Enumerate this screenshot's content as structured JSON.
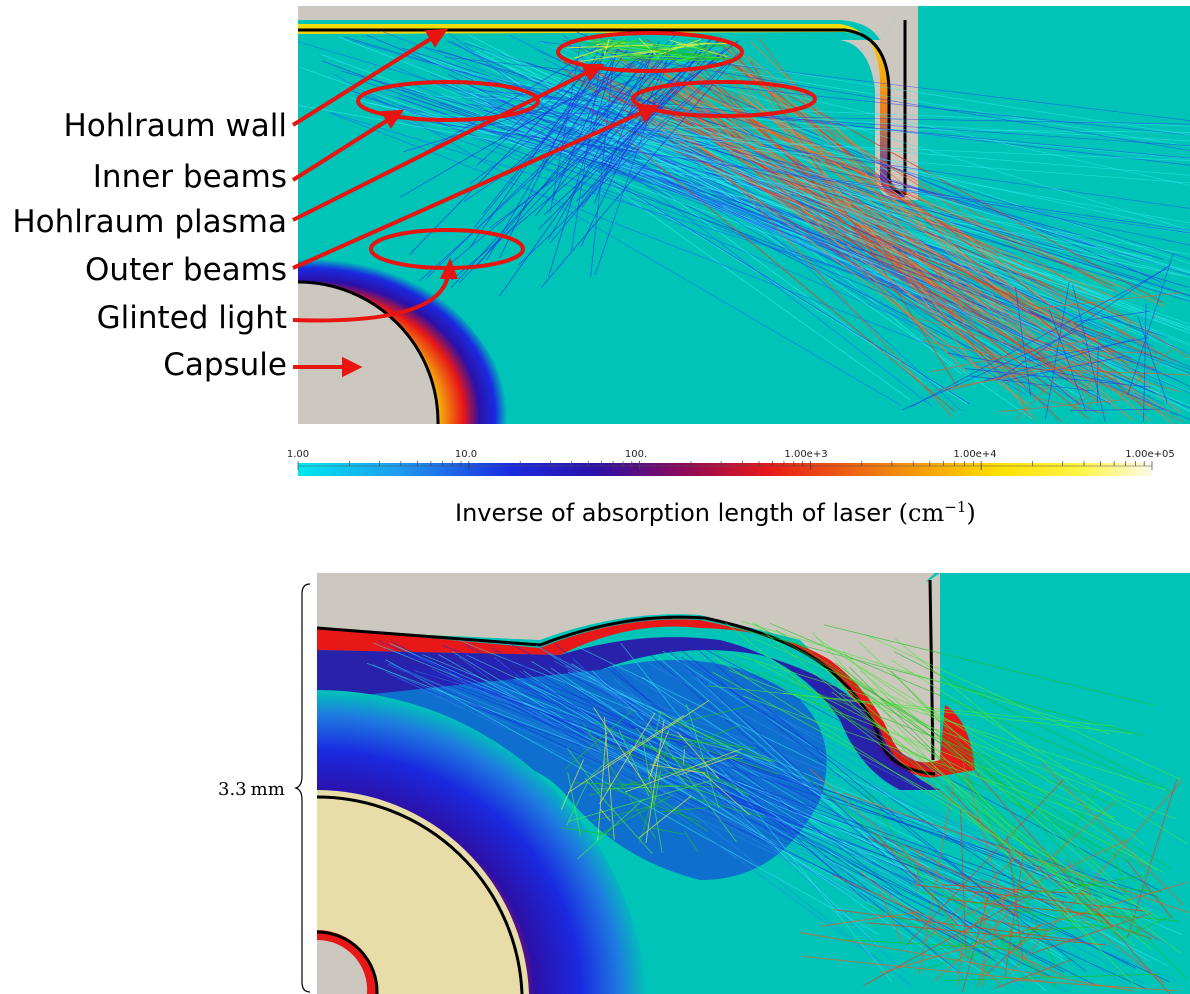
{
  "labels": [
    "Hohlraum wall",
    "Inner beams",
    "Hohlraum plasma",
    "Outer beams",
    "Glinted light",
    "Capsule"
  ],
  "colorbar": {
    "ticks": [
      "1.00",
      "10.0",
      "100.",
      "1.00e+3",
      "1.00e+4",
      "1.00e+05"
    ],
    "title_text": "Inverse of absorption length of laser",
    "title_unit": "cm",
    "title_exponent": "−1"
  },
  "dimension": {
    "value": "3.3",
    "unit": "mm"
  },
  "colors": {
    "background_plasma": "#00c4b8",
    "wall": "#ccc8bf",
    "annotation": "#e8140f"
  }
}
